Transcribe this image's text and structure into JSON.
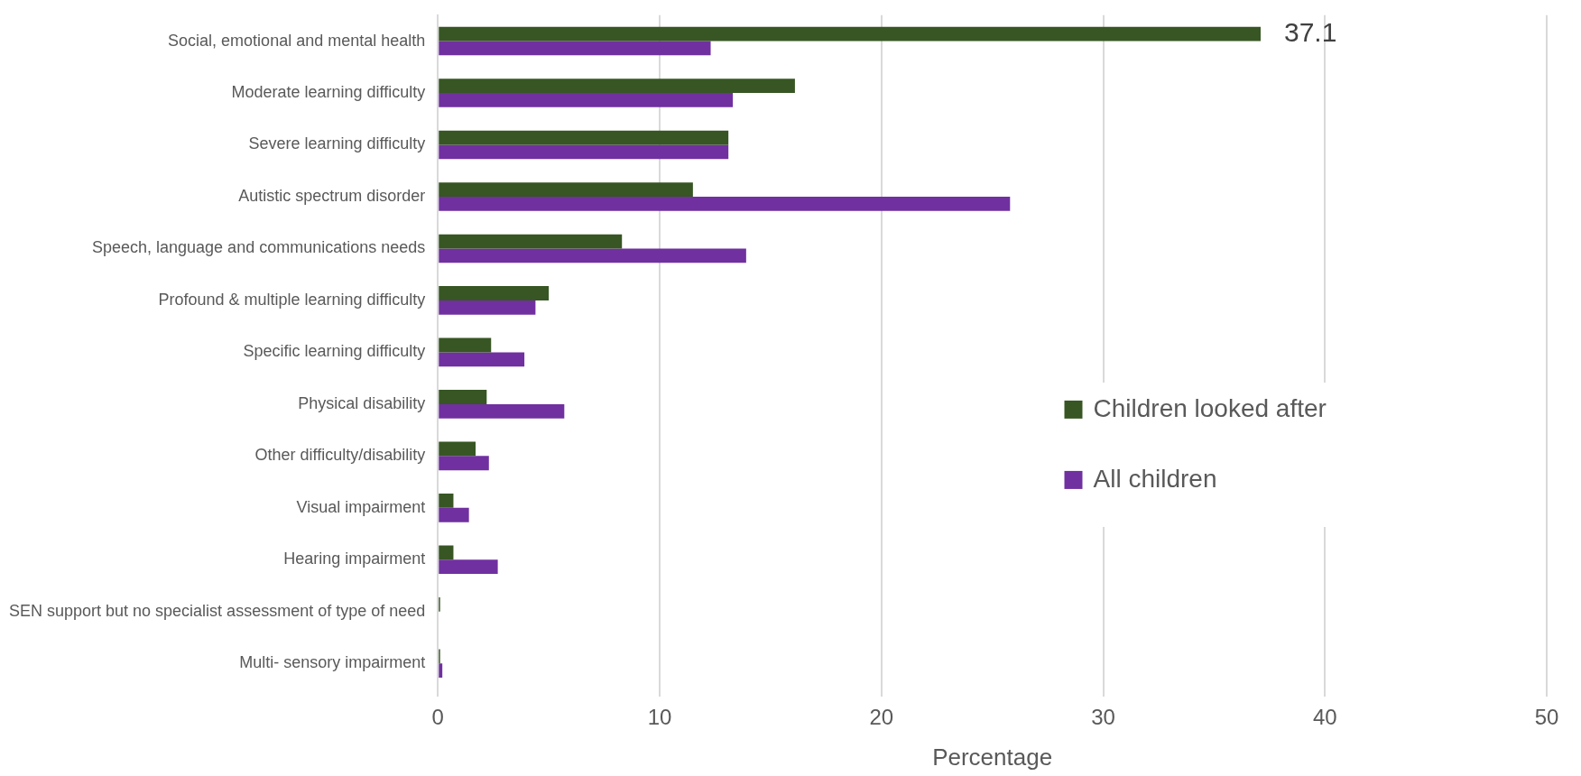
{
  "chart_data": {
    "type": "bar",
    "orientation": "horizontal",
    "xlabel": "Percentage",
    "categories": [
      "Social, emotional and mental health",
      "Moderate learning difficulty",
      "Severe learning difficulty",
      "Autistic spectrum disorder",
      "Speech, language and communications needs",
      "Profound & multiple learning difficulty",
      "Specific learning difficulty",
      "Physical disability",
      "Other difficulty/disability",
      "Visual impairment",
      "Hearing impairment",
      "SEN support but no specialist assessment of type of need",
      "Multi- sensory impairment"
    ],
    "series": [
      {
        "name": "Children looked after",
        "color": "#375623",
        "values": [
          37.1,
          16.1,
          13.1,
          11.5,
          8.3,
          5.0,
          2.4,
          2.2,
          1.7,
          0.7,
          0.7,
          0.1,
          0.1
        ],
        "value_labels": [
          "37.1",
          null,
          null,
          null,
          null,
          null,
          null,
          null,
          null,
          null,
          null,
          null,
          null
        ]
      },
      {
        "name": "All children",
        "color": "#7030a0",
        "values": [
          12.3,
          13.3,
          13.1,
          25.8,
          13.9,
          4.4,
          3.9,
          5.7,
          2.3,
          1.4,
          2.7,
          0,
          0.2
        ]
      }
    ],
    "xlim": [
      0,
      50
    ],
    "xticks": [
      0,
      10,
      20,
      30,
      40,
      50
    ],
    "grid": "x",
    "legend": "right"
  }
}
